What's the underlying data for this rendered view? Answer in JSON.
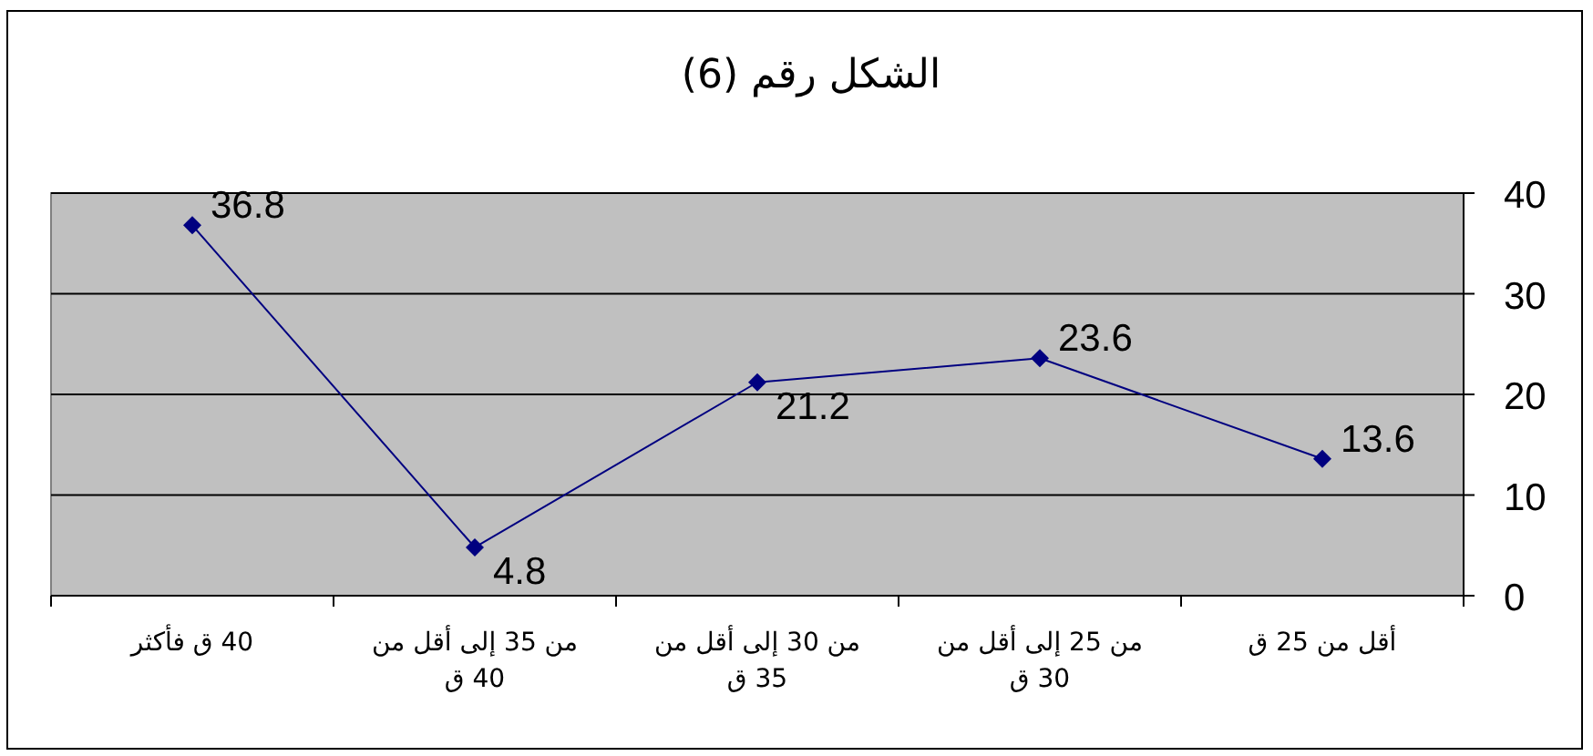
{
  "chart_data": {
    "type": "line",
    "title": "الشكل رقم (6)",
    "categories": [
      "40 ق فأكثر",
      "من 35 إلى أقل من 40 ق",
      "من 30 إلى أقل من 35 ق",
      "من 25 إلى أقل من 30 ق",
      "أقل من 25 ق"
    ],
    "series": [
      {
        "color": "#000080",
        "values": [
          36.8,
          4.8,
          21.2,
          23.6,
          13.6
        ]
      }
    ],
    "ylim": [
      0,
      40
    ],
    "yticks": [
      0,
      10,
      20,
      30,
      40
    ],
    "grid": "y",
    "marker": "diamond",
    "data_labels": true
  }
}
